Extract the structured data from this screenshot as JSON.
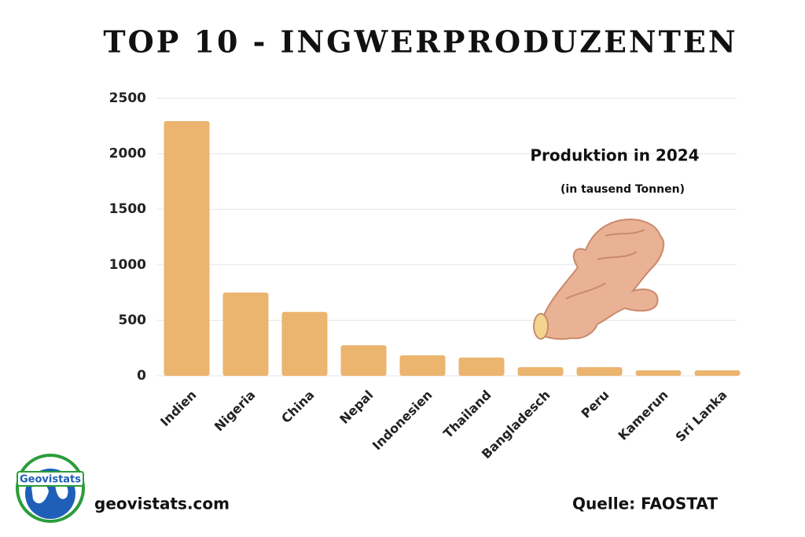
{
  "chart_data": {
    "type": "bar",
    "title": "TOP 10 - INGWERPRODUZENTEN",
    "annotation": "Produktion in 2024",
    "subannotation": "(in tausend Tonnen)",
    "categories": [
      "Indien",
      "Nigeria",
      "China",
      "Nepal",
      "Indonesien",
      "Thailand",
      "Bangladesch",
      "Peru",
      "Kamerun",
      "Sri Lanka"
    ],
    "values": [
      2295,
      750,
      575,
      275,
      185,
      165,
      78,
      78,
      50,
      50
    ],
    "color": "#ebb46f",
    "ylim": [
      0,
      2500
    ],
    "yticks": [
      0,
      500,
      1000,
      1500,
      2000,
      2500
    ],
    "grid": true
  },
  "footer": {
    "brand": "Geovistats",
    "website": "geovistats.com",
    "source": "Quelle: FAOSTAT"
  }
}
